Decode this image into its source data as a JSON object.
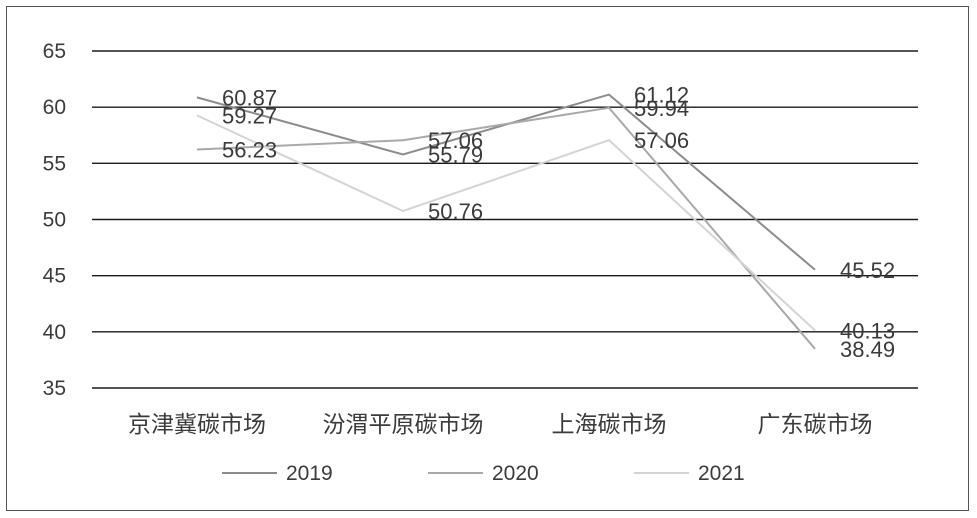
{
  "chart_data": {
    "type": "line",
    "categories": [
      "京津冀碳市场",
      "汾渭平原碳市场",
      "上海碳市场",
      "广东碳市场"
    ],
    "series": [
      {
        "name": "2019",
        "values": [
          60.87,
          55.79,
          61.12,
          45.52
        ],
        "color": "#8c8c8c"
      },
      {
        "name": "2020",
        "values": [
          56.23,
          57.06,
          59.94,
          38.49
        ],
        "color": "#a9a9a9"
      },
      {
        "name": "2021",
        "values": [
          59.27,
          50.76,
          57.06,
          40.13
        ],
        "color": "#d4d4d4"
      }
    ],
    "ylim": [
      35,
      65
    ],
    "yticks": [
      "35",
      "40",
      "45",
      "50",
      "55",
      "60",
      "65"
    ],
    "grid": true,
    "legend_position": "bottom"
  }
}
